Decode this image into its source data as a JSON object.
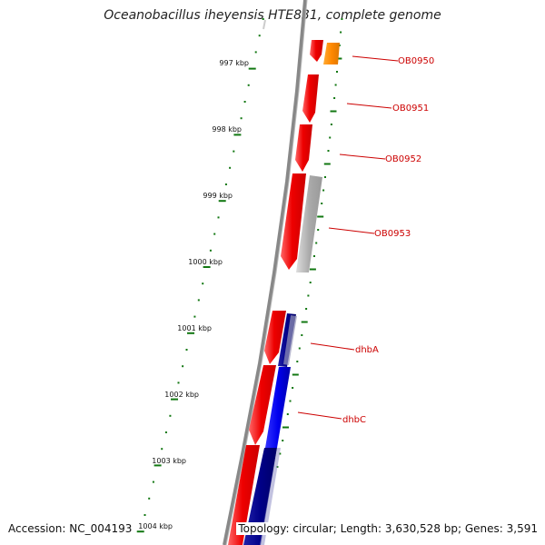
{
  "title": "Oceanobacillus iheyensis HTE831, complete genome",
  "footer": {
    "accession": "Accession: NC_004193",
    "summary": "Topology: circular; Length: 3,630,528 bp; Genes: 3,591"
  },
  "ticks": [
    "997 kbp",
    "998 kbp",
    "999 kbp",
    "1000 kbp",
    "1001 kbp",
    "1002 kbp",
    "1003 kbp",
    "1004 kbp"
  ],
  "gene_labels": [
    "OB0950",
    "OB0951",
    "OB0952",
    "OB0953",
    "dhbA",
    "dhbC"
  ],
  "colors": {
    "forward_gene": "#ee1111",
    "reverse_gene_orange": "#ff8800",
    "reverse_gene_gray": "#aaaaaa",
    "reverse_gene_blue": "#0000ee",
    "reverse_gene_navy": "#000088",
    "tick": "#117711",
    "backbone": "#888888",
    "label": "#cc0000"
  }
}
